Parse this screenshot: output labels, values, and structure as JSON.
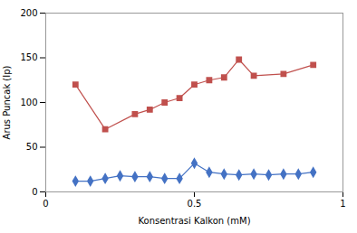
{
  "chart_data": {
    "type": "line",
    "xlabel": "Konsentrasi Kalkon (mM)",
    "ylabel": "Arus Puncak (Ip)",
    "xlim": [
      0,
      1.0
    ],
    "xticks": [
      0,
      0.5,
      1
    ],
    "ylim": [
      0,
      200
    ],
    "yticks": [
      0,
      50,
      100,
      150,
      200
    ],
    "grid": false,
    "series": [
      {
        "x": [
          0.1,
          0.2,
          0.3,
          0.35,
          0.4,
          0.45,
          0.5,
          0.55,
          0.6,
          0.65,
          0.7,
          0.8,
          0.9
        ],
        "values": [
          120,
          70,
          87,
          92,
          100,
          105,
          120,
          125,
          128,
          148,
          130,
          132,
          142
        ],
        "color": "#c0504d",
        "marker": "square"
      },
      {
        "x": [
          0.1,
          0.15,
          0.2,
          0.25,
          0.3,
          0.35,
          0.4,
          0.45,
          0.5,
          0.55,
          0.6,
          0.65,
          0.7,
          0.75,
          0.8,
          0.85,
          0.9
        ],
        "values": [
          12,
          12,
          15,
          18,
          17,
          17,
          15,
          15,
          32,
          22,
          20,
          19,
          20,
          19,
          20,
          20,
          22
        ],
        "color": "#4472c4",
        "marker": "diamond"
      }
    ]
  }
}
